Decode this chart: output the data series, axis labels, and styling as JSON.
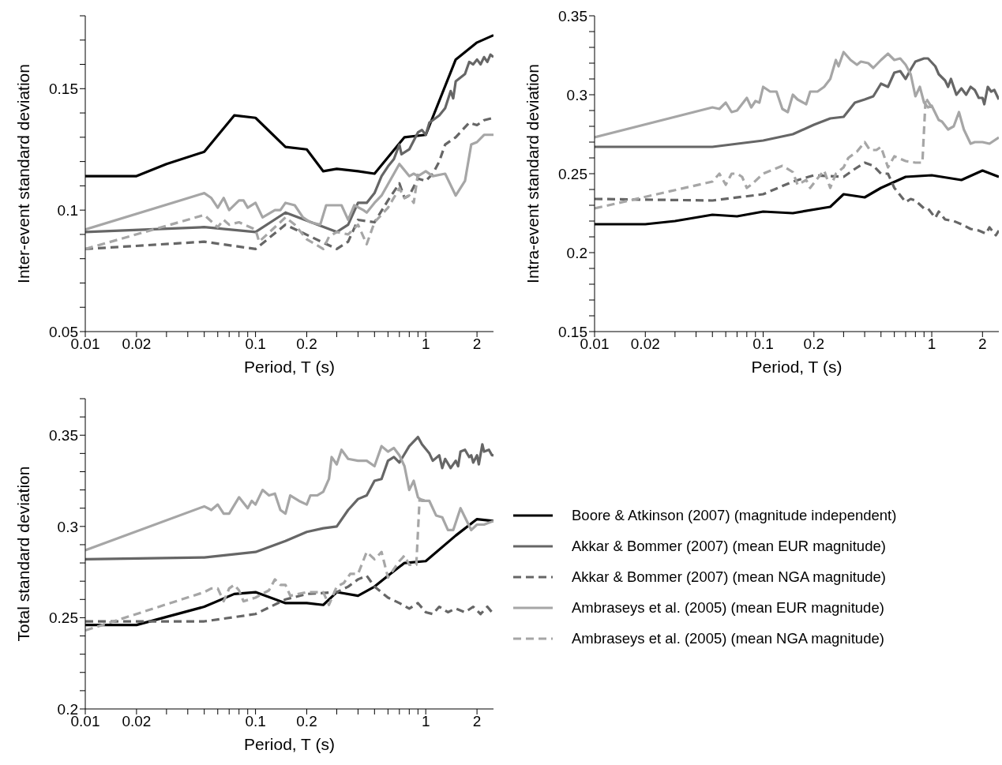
{
  "chart_data": [
    {
      "type": "line",
      "xlabel": "Period, T (s)",
      "ylabel": "Inter-event standard deviation",
      "log": "x",
      "marker": "none",
      "legend": false,
      "xlim": [
        0.01,
        2.5
      ],
      "xticks": [
        0.01,
        0.02,
        {
          "value": 0.03,
          "label": null
        },
        {
          "value": 0.04,
          "label": null
        },
        {
          "value": 0.05,
          "label": null
        },
        {
          "value": 0.06,
          "label": null
        },
        {
          "value": 0.07,
          "label": null
        },
        {
          "value": 0.08,
          "label": null
        },
        {
          "value": 0.09,
          "label": null
        },
        0.1,
        0.2,
        {
          "value": 0.3,
          "label": null
        },
        {
          "value": 0.4,
          "label": null
        },
        {
          "value": 0.5,
          "label": null
        },
        {
          "value": 0.6,
          "label": null
        },
        {
          "value": 0.7,
          "label": null
        },
        {
          "value": 0.8,
          "label": null
        },
        {
          "value": 0.9,
          "label": null
        },
        1,
        2
      ],
      "ylim": [
        0.05,
        0.18
      ],
      "yticks": [
        0.05,
        {
          "value": 0.06,
          "label": null
        },
        {
          "value": 0.07,
          "label": null
        },
        {
          "value": 0.08,
          "label": null
        },
        {
          "value": 0.09,
          "label": null
        },
        0.1,
        {
          "value": 0.11,
          "label": null
        },
        {
          "value": 0.12,
          "label": null
        },
        {
          "value": 0.13,
          "label": null
        },
        {
          "value": 0.14,
          "label": null
        },
        0.15,
        {
          "value": 0.16,
          "label": null
        },
        {
          "value": 0.17,
          "label": null
        },
        {
          "value": 0.18,
          "label": null
        }
      ],
      "series": [
        {
          "color": "#000000",
          "line_style": "solid",
          "x": [
            0.01,
            0.02,
            0.03,
            0.05,
            0.075,
            0.1,
            0.15,
            0.2,
            0.25,
            0.3,
            0.4,
            0.5,
            0.75,
            1,
            1.5,
            2,
            2.5
          ],
          "values": [
            0.114,
            0.114,
            0.119,
            0.124,
            0.139,
            0.138,
            0.126,
            0.125,
            0.116,
            0.117,
            0.116,
            0.115,
            0.13,
            0.131,
            0.162,
            0.169,
            0.172
          ]
        },
        {
          "color": "#666666",
          "line_style": "solid",
          "x": [
            0.01,
            0.05,
            0.1,
            0.15,
            0.3,
            0.35,
            0.4,
            0.45,
            0.5,
            0.55,
            0.6,
            0.65,
            0.7,
            0.72,
            0.8,
            0.9,
            0.95,
            1,
            1.05,
            1.1,
            1.2,
            1.3,
            1.4,
            1.45,
            1.5,
            1.7,
            1.8,
            1.9,
            2,
            2.1,
            2.2,
            2.3,
            2.4,
            2.5
          ],
          "values": [
            0.091,
            0.093,
            0.091,
            0.099,
            0.091,
            0.094,
            0.103,
            0.103,
            0.107,
            0.114,
            0.118,
            0.121,
            0.127,
            0.123,
            0.125,
            0.132,
            0.133,
            0.131,
            0.136,
            0.137,
            0.139,
            0.142,
            0.149,
            0.146,
            0.153,
            0.156,
            0.161,
            0.16,
            0.162,
            0.16,
            0.163,
            0.161,
            0.164,
            0.163
          ]
        },
        {
          "color": "#666666",
          "line_style": "dashed",
          "x": [
            0.01,
            0.05,
            0.1,
            0.15,
            0.3,
            0.35,
            0.4,
            0.5,
            0.6,
            0.7,
            0.75,
            0.8,
            0.9,
            1,
            1.1,
            1.2,
            1.3,
            1.5,
            1.8,
            2,
            2.2,
            2.5
          ],
          "values": [
            0.084,
            0.087,
            0.084,
            0.094,
            0.084,
            0.087,
            0.096,
            0.095,
            0.104,
            0.111,
            0.105,
            0.106,
            0.113,
            0.112,
            0.115,
            0.12,
            0.127,
            0.13,
            0.136,
            0.135,
            0.137,
            0.138
          ]
        },
        {
          "color": "#a6a6a6",
          "line_style": "solid",
          "x": [
            0.01,
            0.05,
            0.055,
            0.06,
            0.065,
            0.07,
            0.08,
            0.085,
            0.09,
            0.1,
            0.11,
            0.13,
            0.14,
            0.15,
            0.17,
            0.19,
            0.21,
            0.24,
            0.26,
            0.28,
            0.32,
            0.35,
            0.38,
            0.43,
            0.45,
            0.5,
            0.55,
            0.7,
            0.8,
            0.85,
            0.9,
            1,
            1.1,
            1.3,
            1.5,
            1.7,
            1.85,
            2,
            2.2,
            2.5
          ],
          "values": [
            0.092,
            0.107,
            0.105,
            0.101,
            0.105,
            0.1,
            0.104,
            0.104,
            0.101,
            0.103,
            0.097,
            0.1,
            0.1,
            0.103,
            0.102,
            0.097,
            0.095,
            0.094,
            0.102,
            0.102,
            0.102,
            0.096,
            0.102,
            0.1,
            0.099,
            0.103,
            0.106,
            0.119,
            0.114,
            0.115,
            0.114,
            0.116,
            0.114,
            0.115,
            0.106,
            0.112,
            0.127,
            0.128,
            0.131,
            0.131
          ]
        },
        {
          "color": "#a6a6a6",
          "line_style": "dashed",
          "x": [
            0.01,
            0.05,
            0.06,
            0.065,
            0.07,
            0.08,
            0.1,
            0.105,
            0.15,
            0.17,
            0.2,
            0.25,
            0.27,
            0.3,
            0.35,
            0.4,
            0.45,
            0.5,
            0.6,
            0.7,
            0.75,
            0.8,
            0.85,
            0.9
          ],
          "values": [
            0.084,
            0.098,
            0.093,
            0.096,
            0.094,
            0.095,
            0.092,
            0.087,
            0.097,
            0.094,
            0.088,
            0.084,
            0.089,
            0.091,
            0.09,
            0.094,
            0.086,
            0.095,
            0.101,
            0.109,
            0.105,
            0.106,
            0.103,
            0.115
          ]
        }
      ]
    },
    {
      "type": "line",
      "xlabel": "Period, T (s)",
      "ylabel": "Intra-event standard deviation",
      "log": "x",
      "marker": "none",
      "legend": false,
      "xlim": [
        0.01,
        2.5
      ],
      "xticks": [
        0.01,
        0.02,
        {
          "value": 0.03,
          "label": null
        },
        {
          "value": 0.04,
          "label": null
        },
        {
          "value": 0.05,
          "label": null
        },
        {
          "value": 0.06,
          "label": null
        },
        {
          "value": 0.07,
          "label": null
        },
        {
          "value": 0.08,
          "label": null
        },
        {
          "value": 0.09,
          "label": null
        },
        0.1,
        0.2,
        {
          "value": 0.3,
          "label": null
        },
        {
          "value": 0.4,
          "label": null
        },
        {
          "value": 0.5,
          "label": null
        },
        {
          "value": 0.6,
          "label": null
        },
        {
          "value": 0.7,
          "label": null
        },
        {
          "value": 0.8,
          "label": null
        },
        {
          "value": 0.9,
          "label": null
        },
        1,
        2
      ],
      "ylim": [
        0.15,
        0.35
      ],
      "yticks": [
        0.15,
        {
          "value": 0.16,
          "label": null
        },
        {
          "value": 0.17,
          "label": null
        },
        {
          "value": 0.18,
          "label": null
        },
        {
          "value": 0.19,
          "label": null
        },
        0.2,
        {
          "value": 0.21,
          "label": null
        },
        {
          "value": 0.22,
          "label": null
        },
        {
          "value": 0.23,
          "label": null
        },
        {
          "value": 0.24,
          "label": null
        },
        0.25,
        {
          "value": 0.26,
          "label": null
        },
        {
          "value": 0.27,
          "label": null
        },
        {
          "value": 0.28,
          "label": null
        },
        {
          "value": 0.29,
          "label": null
        },
        0.3,
        {
          "value": 0.31,
          "label": null
        },
        {
          "value": 0.32,
          "label": null
        },
        {
          "value": 0.33,
          "label": null
        },
        {
          "value": 0.34,
          "label": null
        },
        0.35
      ],
      "series": [
        {
          "color": "#000000",
          "line_style": "solid",
          "x": [
            0.01,
            0.02,
            0.03,
            0.05,
            0.07,
            0.1,
            0.15,
            0.25,
            0.3,
            0.4,
            0.5,
            0.7,
            1,
            1.5,
            2,
            2.5
          ],
          "values": [
            0.218,
            0.218,
            0.22,
            0.224,
            0.223,
            0.226,
            0.225,
            0.229,
            0.237,
            0.235,
            0.241,
            0.248,
            0.249,
            0.246,
            0.252,
            0.248
          ]
        },
        {
          "color": "#666666",
          "line_style": "solid",
          "x": [
            0.01,
            0.05,
            0.1,
            0.15,
            0.2,
            0.25,
            0.3,
            0.35,
            0.4,
            0.45,
            0.5,
            0.55,
            0.6,
            0.65,
            0.7,
            0.75,
            0.8,
            0.9,
            0.95,
            1.05,
            1.1,
            1.2,
            1.25,
            1.3,
            1.4,
            1.5,
            1.6,
            1.7,
            1.8,
            1.9,
            2,
            2.05,
            2.15,
            2.25,
            2.35,
            2.5
          ],
          "values": [
            0.267,
            0.267,
            0.271,
            0.275,
            0.281,
            0.285,
            0.286,
            0.295,
            0.297,
            0.299,
            0.307,
            0.305,
            0.314,
            0.315,
            0.31,
            0.316,
            0.321,
            0.323,
            0.323,
            0.318,
            0.313,
            0.309,
            0.305,
            0.31,
            0.3,
            0.304,
            0.3,
            0.305,
            0.303,
            0.298,
            0.298,
            0.294,
            0.305,
            0.302,
            0.303,
            0.297
          ]
        },
        {
          "color": "#666666",
          "line_style": "dashed",
          "x": [
            0.01,
            0.05,
            0.1,
            0.15,
            0.2,
            0.3,
            0.35,
            0.4,
            0.45,
            0.5,
            0.55,
            0.6,
            0.7,
            0.75,
            0.8,
            0.9,
            0.95,
            1.05,
            1.1,
            1.2,
            1.35,
            1.5,
            1.7,
            1.9,
            2.1,
            2.2,
            2.4,
            2.5
          ],
          "values": [
            0.234,
            0.233,
            0.237,
            0.245,
            0.249,
            0.248,
            0.253,
            0.257,
            0.255,
            0.25,
            0.25,
            0.241,
            0.232,
            0.234,
            0.233,
            0.228,
            0.228,
            0.222,
            0.226,
            0.221,
            0.22,
            0.218,
            0.215,
            0.214,
            0.212,
            0.216,
            0.211,
            0.214
          ]
        },
        {
          "color": "#a6a6a6",
          "line_style": "solid",
          "x": [
            0.01,
            0.05,
            0.055,
            0.06,
            0.065,
            0.07,
            0.08,
            0.085,
            0.09,
            0.095,
            0.1,
            0.11,
            0.12,
            0.13,
            0.14,
            0.15,
            0.16,
            0.18,
            0.19,
            0.21,
            0.23,
            0.25,
            0.27,
            0.28,
            0.3,
            0.33,
            0.36,
            0.38,
            0.42,
            0.45,
            0.5,
            0.55,
            0.6,
            0.65,
            0.7,
            0.75,
            0.8,
            0.85,
            0.9,
            0.95,
            1,
            1.1,
            1.15,
            1.25,
            1.35,
            1.45,
            1.55,
            1.7,
            1.8,
            2,
            2.2,
            2.5
          ],
          "values": [
            0.273,
            0.292,
            0.291,
            0.295,
            0.289,
            0.29,
            0.298,
            0.292,
            0.296,
            0.295,
            0.305,
            0.302,
            0.302,
            0.291,
            0.289,
            0.3,
            0.297,
            0.294,
            0.302,
            0.302,
            0.305,
            0.31,
            0.322,
            0.318,
            0.327,
            0.322,
            0.319,
            0.321,
            0.32,
            0.317,
            0.322,
            0.326,
            0.322,
            0.323,
            0.319,
            0.313,
            0.299,
            0.305,
            0.295,
            0.292,
            0.293,
            0.284,
            0.283,
            0.278,
            0.28,
            0.289,
            0.278,
            0.269,
            0.27,
            0.27,
            0.269,
            0.273
          ]
        },
        {
          "color": "#a6a6a6",
          "line_style": "dashed",
          "x": [
            0.01,
            0.05,
            0.055,
            0.06,
            0.065,
            0.07,
            0.075,
            0.08,
            0.085,
            0.1,
            0.13,
            0.15,
            0.16,
            0.18,
            0.19,
            0.21,
            0.23,
            0.25,
            0.27,
            0.3,
            0.32,
            0.36,
            0.4,
            0.43,
            0.47,
            0.5,
            0.55,
            0.6,
            0.7,
            0.8,
            0.88,
            0.92,
            1
          ],
          "values": [
            0.228,
            0.245,
            0.25,
            0.243,
            0.25,
            0.25,
            0.248,
            0.241,
            0.243,
            0.25,
            0.255,
            0.251,
            0.243,
            0.246,
            0.241,
            0.247,
            0.252,
            0.241,
            0.25,
            0.254,
            0.26,
            0.264,
            0.27,
            0.265,
            0.265,
            0.267,
            0.254,
            0.261,
            0.258,
            0.257,
            0.257,
            0.298,
            0.292
          ]
        }
      ]
    },
    {
      "type": "line",
      "xlabel": "Period, T (s)",
      "ylabel": "Total standard deviation",
      "log": "x",
      "marker": "none",
      "legend": "right",
      "xlim": [
        0.01,
        2.5
      ],
      "xticks": [
        0.01,
        0.02,
        {
          "value": 0.03,
          "label": null
        },
        {
          "value": 0.04,
          "label": null
        },
        {
          "value": 0.05,
          "label": null
        },
        {
          "value": 0.06,
          "label": null
        },
        {
          "value": 0.07,
          "label": null
        },
        {
          "value": 0.08,
          "label": null
        },
        {
          "value": 0.09,
          "label": null
        },
        0.1,
        0.2,
        {
          "value": 0.3,
          "label": null
        },
        {
          "value": 0.4,
          "label": null
        },
        {
          "value": 0.5,
          "label": null
        },
        {
          "value": 0.6,
          "label": null
        },
        {
          "value": 0.7,
          "label": null
        },
        {
          "value": 0.8,
          "label": null
        },
        {
          "value": 0.9,
          "label": null
        },
        1,
        2
      ],
      "ylim": [
        0.2,
        0.37
      ],
      "yticks": [
        0.2,
        {
          "value": 0.21,
          "label": null
        },
        {
          "value": 0.22,
          "label": null
        },
        {
          "value": 0.23,
          "label": null
        },
        {
          "value": 0.24,
          "label": null
        },
        0.25,
        {
          "value": 0.26,
          "label": null
        },
        {
          "value": 0.27,
          "label": null
        },
        {
          "value": 0.28,
          "label": null
        },
        {
          "value": 0.29,
          "label": null
        },
        0.3,
        {
          "value": 0.31,
          "label": null
        },
        {
          "value": 0.32,
          "label": null
        },
        {
          "value": 0.33,
          "label": null
        },
        {
          "value": 0.34,
          "label": null
        },
        0.35,
        {
          "value": 0.36,
          "label": null
        },
        {
          "value": 0.37,
          "label": null
        }
      ],
      "series": [
        {
          "name": "Boore & Atkinson (2007) (magnitude independent)",
          "color": "#000000",
          "line_style": "solid",
          "x": [
            0.01,
            0.02,
            0.05,
            0.075,
            0.1,
            0.15,
            0.2,
            0.25,
            0.3,
            0.4,
            0.5,
            0.6,
            0.75,
            1,
            1.5,
            2,
            2.5
          ],
          "values": [
            0.246,
            0.246,
            0.256,
            0.263,
            0.264,
            0.258,
            0.258,
            0.257,
            0.264,
            0.262,
            0.267,
            0.273,
            0.28,
            0.281,
            0.295,
            0.304,
            0.303
          ]
        },
        {
          "name": "Akkar & Bommer (2007) (mean EUR magnitude)",
          "color": "#666666",
          "line_style": "solid",
          "x": [
            0.01,
            0.05,
            0.1,
            0.15,
            0.2,
            0.25,
            0.3,
            0.35,
            0.4,
            0.45,
            0.5,
            0.55,
            0.6,
            0.65,
            0.7,
            0.8,
            0.9,
            0.95,
            1.05,
            1.1,
            1.2,
            1.25,
            1.3,
            1.4,
            1.5,
            1.55,
            1.6,
            1.7,
            1.8,
            1.85,
            1.9,
            2,
            2.05,
            2.15,
            2.2,
            2.35,
            2.45,
            2.5
          ],
          "values": [
            0.282,
            0.283,
            0.286,
            0.292,
            0.297,
            0.299,
            0.3,
            0.309,
            0.315,
            0.317,
            0.325,
            0.326,
            0.336,
            0.338,
            0.335,
            0.344,
            0.349,
            0.345,
            0.34,
            0.336,
            0.339,
            0.332,
            0.337,
            0.332,
            0.336,
            0.333,
            0.341,
            0.342,
            0.338,
            0.339,
            0.335,
            0.339,
            0.334,
            0.345,
            0.341,
            0.342,
            0.339,
            0.339
          ]
        },
        {
          "name": "Akkar & Bommer (2007) (mean NGA magnitude)",
          "color": "#666666",
          "line_style": "dashed",
          "x": [
            0.01,
            0.05,
            0.1,
            0.15,
            0.2,
            0.3,
            0.35,
            0.4,
            0.45,
            0.5,
            0.6,
            0.7,
            0.8,
            0.9,
            1,
            1.1,
            1.2,
            1.35,
            1.5,
            1.7,
            1.9,
            2.1,
            2.3,
            2.5
          ],
          "values": [
            0.248,
            0.248,
            0.252,
            0.26,
            0.263,
            0.264,
            0.267,
            0.271,
            0.273,
            0.267,
            0.261,
            0.258,
            0.255,
            0.258,
            0.253,
            0.252,
            0.256,
            0.253,
            0.255,
            0.253,
            0.256,
            0.252,
            0.256,
            0.252
          ]
        },
        {
          "name": "Ambraseys et al. (2005) (mean EUR magnitude)",
          "color": "#a6a6a6",
          "line_style": "solid",
          "x": [
            0.01,
            0.05,
            0.055,
            0.06,
            0.065,
            0.07,
            0.08,
            0.09,
            0.095,
            0.1,
            0.11,
            0.12,
            0.13,
            0.14,
            0.15,
            0.16,
            0.18,
            0.2,
            0.21,
            0.23,
            0.25,
            0.27,
            0.28,
            0.3,
            0.32,
            0.35,
            0.4,
            0.45,
            0.5,
            0.55,
            0.6,
            0.65,
            0.7,
            0.75,
            0.8,
            0.85,
            0.9,
            0.95,
            1.05,
            1.15,
            1.25,
            1.35,
            1.45,
            1.6,
            1.7,
            1.85,
            2,
            2.2,
            2.5
          ],
          "values": [
            0.287,
            0.311,
            0.309,
            0.312,
            0.307,
            0.307,
            0.316,
            0.31,
            0.314,
            0.312,
            0.32,
            0.317,
            0.318,
            0.309,
            0.307,
            0.317,
            0.314,
            0.312,
            0.317,
            0.317,
            0.319,
            0.326,
            0.338,
            0.334,
            0.342,
            0.337,
            0.336,
            0.336,
            0.333,
            0.344,
            0.341,
            0.343,
            0.339,
            0.333,
            0.32,
            0.325,
            0.316,
            0.314,
            0.314,
            0.306,
            0.305,
            0.298,
            0.298,
            0.31,
            0.305,
            0.298,
            0.301,
            0.301,
            0.303
          ]
        },
        {
          "name": "Ambraseys et al. (2005) (mean NGA magnitude)",
          "color": "#a6a6a6",
          "line_style": "dashed",
          "x": [
            0.01,
            0.05,
            0.055,
            0.06,
            0.065,
            0.07,
            0.075,
            0.08,
            0.085,
            0.1,
            0.12,
            0.13,
            0.14,
            0.15,
            0.16,
            0.2,
            0.25,
            0.27,
            0.3,
            0.33,
            0.36,
            0.4,
            0.45,
            0.5,
            0.55,
            0.6,
            0.7,
            0.75,
            0.8,
            0.88,
            0.92,
            1
          ],
          "values": [
            0.243,
            0.264,
            0.266,
            0.266,
            0.259,
            0.266,
            0.268,
            0.265,
            0.259,
            0.261,
            0.265,
            0.271,
            0.268,
            0.268,
            0.262,
            0.264,
            0.264,
            0.257,
            0.267,
            0.269,
            0.274,
            0.274,
            0.286,
            0.282,
            0.286,
            0.272,
            0.281,
            0.284,
            0.279,
            0.279,
            0.315,
            0.314
          ]
        }
      ]
    }
  ]
}
